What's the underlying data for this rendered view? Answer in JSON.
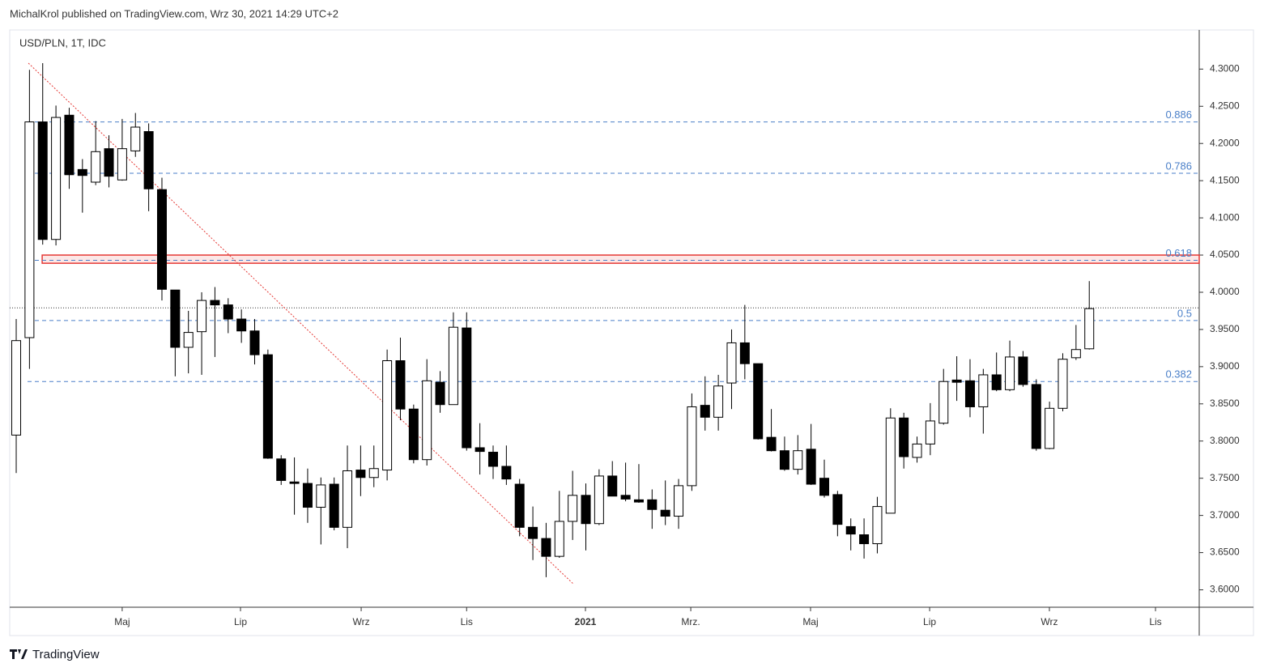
{
  "header": "MichalKrol published on TradingView.com, Wrz 30, 2021 14:29 UTC+2",
  "footer": "TradingView",
  "chart_data": {
    "type": "candlestick",
    "title": "USD/PLN, 1T, IDC",
    "up_color": "#ffffff",
    "down_color": "#000000",
    "open": [
      3.808,
      3.939,
      4.229,
      4.071,
      4.238,
      4.165,
      4.148,
      4.193,
      4.151,
      4.19,
      4.216,
      4.138,
      4.003,
      3.926,
      3.947,
      3.989,
      3.983,
      3.964,
      3.948,
      3.916,
      3.776,
      3.745,
      3.743,
      3.711,
      3.742,
      3.684,
      3.761,
      3.751,
      3.761,
      3.908,
      3.843,
      3.775,
      3.879,
      3.849,
      3.952,
      3.791,
      3.785,
      3.766,
      3.742,
      3.684,
      3.669,
      3.645,
      3.692,
      3.727,
      3.689,
      3.753,
      3.727,
      3.721,
      3.721,
      3.707,
      3.699,
      3.74,
      3.848,
      3.832,
      3.878,
      3.932,
      3.904,
      3.805,
      3.787,
      3.762,
      3.789,
      3.75,
      3.728,
      3.685,
      3.674,
      3.662,
      3.703,
      3.831,
      3.778,
      3.796,
      3.824,
      3.882,
      3.881,
      3.846,
      3.889,
      3.869,
      3.913,
      3.876,
      3.79,
      3.844,
      3.912,
      3.924
    ],
    "high": [
      3.964,
      4.299,
      4.308,
      4.251,
      4.248,
      4.179,
      4.23,
      4.211,
      4.233,
      4.241,
      4.227,
      4.154,
      4.003,
      3.975,
      4.0,
      4.007,
      3.992,
      3.977,
      3.964,
      3.923,
      3.781,
      3.778,
      3.763,
      3.751,
      3.751,
      3.794,
      3.794,
      3.794,
      3.923,
      3.939,
      3.849,
      3.91,
      3.894,
      3.973,
      3.973,
      3.824,
      3.794,
      3.794,
      3.749,
      3.712,
      3.69,
      3.733,
      3.76,
      3.743,
      3.762,
      3.773,
      3.771,
      3.769,
      3.735,
      3.747,
      3.749,
      3.864,
      3.887,
      3.889,
      3.95,
      3.983,
      3.904,
      3.843,
      3.806,
      3.808,
      3.823,
      3.775,
      3.733,
      3.696,
      3.696,
      3.725,
      3.844,
      3.838,
      3.806,
      3.851,
      3.897,
      3.914,
      3.91,
      3.897,
      3.919,
      3.935,
      3.921,
      3.883,
      3.853,
      3.918,
      3.956,
      4.015
    ],
    "low": [
      3.757,
      3.897,
      4.064,
      4.063,
      4.139,
      4.107,
      4.144,
      4.141,
      4.15,
      4.182,
      4.109,
      3.989,
      3.887,
      3.891,
      3.889,
      3.913,
      3.945,
      3.932,
      3.903,
      3.776,
      3.741,
      3.701,
      3.69,
      3.661,
      3.68,
      3.656,
      3.726,
      3.738,
      3.747,
      3.828,
      3.77,
      3.767,
      3.838,
      3.849,
      3.787,
      3.755,
      3.749,
      3.741,
      3.672,
      3.64,
      3.617,
      3.643,
      3.667,
      3.653,
      3.687,
      3.726,
      3.719,
      3.717,
      3.682,
      3.687,
      3.682,
      3.733,
      3.814,
      3.814,
      3.843,
      3.883,
      3.802,
      3.786,
      3.76,
      3.755,
      3.741,
      3.724,
      3.672,
      3.653,
      3.642,
      3.649,
      3.703,
      3.763,
      3.771,
      3.781,
      3.822,
      3.854,
      3.832,
      3.81,
      3.867,
      3.867,
      3.873,
      3.787,
      3.789,
      3.84,
      3.909,
      3.923
    ],
    "close": [
      3.935,
      4.229,
      4.071,
      4.235,
      4.158,
      4.157,
      4.189,
      4.156,
      4.193,
      4.222,
      4.139,
      4.004,
      3.926,
      3.946,
      3.989,
      3.983,
      3.964,
      3.948,
      3.916,
      3.777,
      3.747,
      3.743,
      3.711,
      3.741,
      3.684,
      3.76,
      3.751,
      3.763,
      3.908,
      3.843,
      3.775,
      3.881,
      3.849,
      3.953,
      3.791,
      3.786,
      3.766,
      3.749,
      3.684,
      3.669,
      3.645,
      3.692,
      3.727,
      3.689,
      3.753,
      3.726,
      3.722,
      3.718,
      3.708,
      3.699,
      3.74,
      3.846,
      3.832,
      3.874,
      3.932,
      3.904,
      3.803,
      3.787,
      3.762,
      3.787,
      3.742,
      3.727,
      3.688,
      3.675,
      3.662,
      3.712,
      3.831,
      3.779,
      3.796,
      3.827,
      3.88,
      3.879,
      3.846,
      3.889,
      3.869,
      3.913,
      3.876,
      3.79,
      3.844,
      3.91,
      3.923,
      3.978
    ],
    "xlim": [
      -0.49,
      89.3
    ],
    "xticks": [
      {
        "value": 8,
        "label": "Maj"
      },
      {
        "value": 16.93,
        "label": "Lip"
      },
      {
        "value": 26.04,
        "label": "Wrz"
      },
      {
        "value": 34,
        "label": "Lis"
      },
      {
        "value": 42.97,
        "label": "2021"
      },
      {
        "value": 50.92,
        "label": "Mrz."
      },
      {
        "value": 59.96,
        "label": "Maj"
      },
      {
        "value": 68.95,
        "label": "Lip"
      },
      {
        "value": 77.99,
        "label": "Wrz"
      },
      {
        "value": 86,
        "label": "Lis"
      }
    ],
    "ylim": [
      3.5766,
      4.3526
    ],
    "yticks": [
      {
        "value": 3.6,
        "label": "3.6000"
      },
      {
        "value": 3.65,
        "label": "3.6500"
      },
      {
        "value": 3.7,
        "label": "3.7000"
      },
      {
        "value": 3.75,
        "label": "3.7500"
      },
      {
        "value": 3.8,
        "label": "3.8000"
      },
      {
        "value": 3.85,
        "label": "3.8500"
      },
      {
        "value": 3.9,
        "label": "3.9000"
      },
      {
        "value": 3.95,
        "label": "3.9500"
      },
      {
        "value": 4.0,
        "label": "4.0000"
      },
      {
        "value": 4.05,
        "label": "4.0500"
      },
      {
        "value": 4.1,
        "label": "4.1000"
      },
      {
        "value": 4.15,
        "label": "4.1500"
      },
      {
        "value": 4.2,
        "label": "4.2000"
      },
      {
        "value": 4.25,
        "label": "4.2500"
      },
      {
        "value": 4.3,
        "label": "4.3000"
      }
    ],
    "fib_levels": [
      {
        "ratio": 0.886,
        "price": 4.229
      },
      {
        "ratio": 0.786,
        "price": 4.16
      },
      {
        "ratio": 0.618,
        "price": 4.043
      },
      {
        "ratio": 0.5,
        "price": 3.962
      },
      {
        "ratio": 0.382,
        "price": 3.88
      }
    ],
    "fib_color": "#4a7fc8",
    "zone": {
      "low": 4.039,
      "high": 4.05,
      "start": 1.96,
      "color": "#e53935"
    },
    "trendline": {
      "x": [
        0.92,
        42.05
      ],
      "y": [
        4.308,
        3.608
      ],
      "color": "#e53935"
    },
    "last_price": 3.979
  }
}
